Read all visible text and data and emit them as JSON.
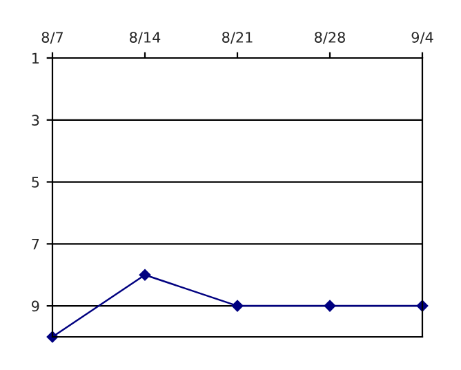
{
  "chart_data": {
    "type": "line",
    "categories": [
      "8/7",
      "8/14",
      "8/21",
      "8/28",
      "9/4"
    ],
    "series": [
      {
        "color": "#000080",
        "values": [
          10,
          8,
          9,
          9,
          9
        ]
      }
    ],
    "ylim": [
      10,
      1
    ],
    "yticks": [
      1,
      3,
      5,
      7,
      9
    ],
    "grid": "y",
    "marker": "diamond",
    "line_style": "solid",
    "legend": false
  }
}
